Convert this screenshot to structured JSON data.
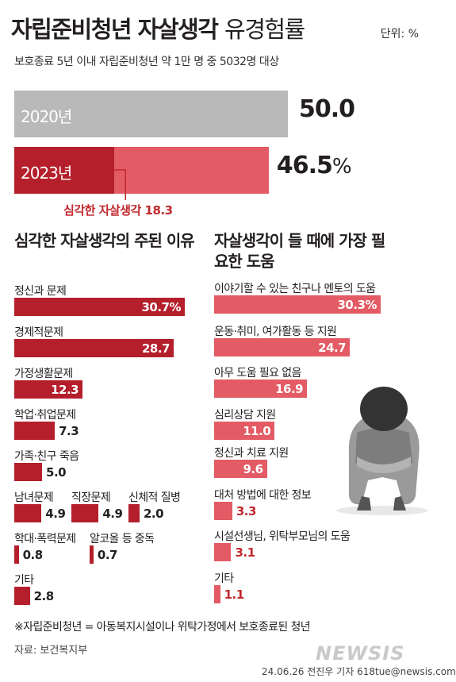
{
  "header": {
    "title_bold": "자립준비청년 자살생각",
    "title_light": "유경험률",
    "unit": "단위: %",
    "subtitle": "보호종료 5년 이내 자립준비청년 약 1만 명 중 5032명 대상"
  },
  "colors": {
    "gray": "#b9b9b9",
    "dark_red": "#b41f2b",
    "light_red": "#e35b64",
    "callout_red": "#c0282d"
  },
  "chart_data": [
    {
      "type": "bar",
      "orientation": "horizontal",
      "categories": [
        "2020년",
        "2023년"
      ],
      "values": [
        50.0,
        46.5
      ],
      "value_labels": [
        "50.0",
        "46.5"
      ],
      "value_unit": "%",
      "stacked_2023": {
        "serious": 18.3,
        "serious_label": "심각한 자살생각 18.3"
      }
    },
    {
      "type": "bar",
      "orientation": "horizontal",
      "title": "심각한 자살생각의 주된 이유",
      "categories": [
        "정신과 문제",
        "경제적문제",
        "가정생활문제",
        "학업·취업문제",
        "가족·친구 죽음",
        "남녀문제",
        "직장문제",
        "신체적 질병",
        "학대·폭력문제",
        "알코올 등 중독",
        "기타"
      ],
      "values": [
        30.7,
        28.7,
        12.3,
        7.3,
        5.0,
        4.9,
        4.9,
        2.0,
        0.8,
        0.7,
        2.8
      ],
      "value_labels": [
        "30.7%",
        "28.7",
        "12.3",
        "7.3",
        "5.0",
        "4.9",
        "4.9",
        "2.0",
        "0.8",
        "0.7",
        "2.8"
      ]
    },
    {
      "type": "bar",
      "orientation": "horizontal",
      "title": "자살생각이 들 때에 가장 필요한 도움",
      "categories": [
        "이야기할 수 있는 친구나 멘토의 도움",
        "운동·취미, 여가활동 등 지원",
        "아무 도움 필요 없음",
        "심리상담 지원",
        "정신과 치료  지원",
        "대처 방법에 대한 정보",
        "시설선생님, 위탁부모님의 도움",
        "기타"
      ],
      "values": [
        30.3,
        24.7,
        16.9,
        11.0,
        9.6,
        3.3,
        3.1,
        1.1
      ],
      "value_labels": [
        "30.3%",
        "24.7",
        "16.9",
        "11.0",
        "9.6",
        "3.3",
        "3.1",
        "1.1"
      ]
    }
  ],
  "footer": {
    "footnote": "※자립준비청년 = 아동복지시설이나 위탁가정에서 보호종료된 청년",
    "source": "자료: 보건복지부",
    "credit": "24.06.26 전진우 기자 618tue@newsis.com",
    "logo": "NEWSIS"
  }
}
